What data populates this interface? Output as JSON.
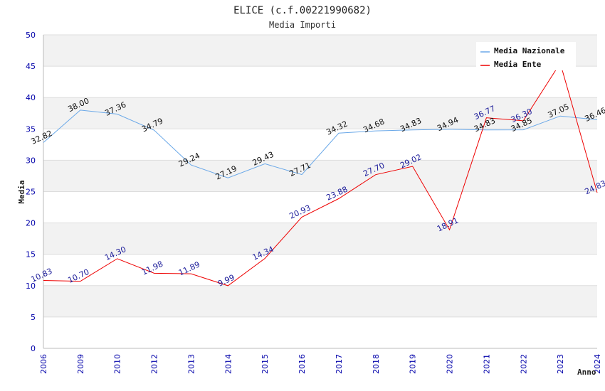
{
  "chart_data": {
    "type": "line",
    "title": "ELICE (c.f.00221990682)",
    "subtitle": "Media Importi",
    "xlabel": "Anno",
    "ylabel": "Media",
    "categories": [
      "2006",
      "2009",
      "2010",
      "2012",
      "2013",
      "2014",
      "2015",
      "2016",
      "2017",
      "2018",
      "2019",
      "2020",
      "2021",
      "2022",
      "2023",
      "2024"
    ],
    "ylim": [
      0,
      50
    ],
    "yticks": [
      "0",
      "5",
      "10",
      "15",
      "20",
      "25",
      "30",
      "35",
      "40",
      "45",
      "50"
    ],
    "series": [
      {
        "name": "Media Nazionale",
        "color": "#6aa8e8",
        "values": [
          32.82,
          38.0,
          37.36,
          34.79,
          29.24,
          27.19,
          29.43,
          27.71,
          34.32,
          34.68,
          34.83,
          34.94,
          34.83,
          34.85,
          37.05,
          36.46
        ],
        "labels": [
          "32.82",
          "38.00",
          "37.36",
          "34.79",
          "29.24",
          "27.19",
          "29.43",
          "27.71",
          "34.32",
          "34.68",
          "34.83",
          "34.94",
          "34.83",
          "34.85",
          "37.05",
          "36.46"
        ]
      },
      {
        "name": "Media Ente",
        "color": "#ee0000",
        "values": [
          10.83,
          10.7,
          14.3,
          11.98,
          11.89,
          9.99,
          14.34,
          20.93,
          23.88,
          27.7,
          29.02,
          18.91,
          36.77,
          36.3,
          45.5,
          24.83
        ],
        "labels": [
          "10.83",
          "10.70",
          "14.30",
          "11.98",
          "11.89",
          "9.99",
          "14.34",
          "20.93",
          "23.88",
          "27.70",
          "29.02",
          "18.91",
          "36.77",
          "36.30",
          "",
          "24.83"
        ]
      }
    ],
    "legend_position": "top-right",
    "grid": true
  }
}
